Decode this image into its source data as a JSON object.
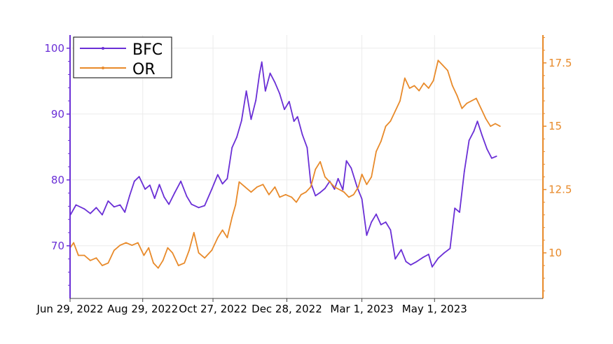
{
  "chart_data": {
    "type": "line",
    "title": "",
    "xlabel": "",
    "ylabel": "",
    "x_range": [
      "2022-06-29",
      "2023-07-31"
    ],
    "x_ticks": [
      {
        "date": "2022-06-29",
        "label": "Jun 29, 2022"
      },
      {
        "date": "2022-08-29",
        "label": "Aug 29, 2022"
      },
      {
        "date": "2022-10-27",
        "label": "Oct 27, 2022"
      },
      {
        "date": "2022-12-28",
        "label": "Dec 28, 2022"
      },
      {
        "date": "2023-03-01",
        "label": "Mar 1, 2023"
      },
      {
        "date": "2023-05-01",
        "label": "May 1, 2023"
      }
    ],
    "y_left": {
      "range": [
        62,
        102
      ],
      "ticks": [
        70,
        80,
        90,
        100
      ],
      "tick_labels": [
        "70",
        "80",
        "90",
        "100"
      ],
      "color": "#6a2fd6"
    },
    "y_right": {
      "range": [
        8.2,
        18.6
      ],
      "ticks": [
        10,
        12.5,
        15,
        17.5
      ],
      "tick_labels": [
        "10",
        "12.5",
        "15",
        "17.5"
      ],
      "color": "#e88a2a"
    },
    "grid": true,
    "legend_position": "top-left",
    "series": [
      {
        "name": "BFC",
        "axis": "left",
        "color": "#6a2fd6",
        "points": [
          [
            "2022-06-29",
            74.6
          ],
          [
            "2022-07-04",
            76.2
          ],
          [
            "2022-07-11",
            75.6
          ],
          [
            "2022-07-16",
            74.9
          ],
          [
            "2022-07-21",
            75.8
          ],
          [
            "2022-07-26",
            74.7
          ],
          [
            "2022-07-31",
            76.8
          ],
          [
            "2022-08-05",
            75.9
          ],
          [
            "2022-08-10",
            76.2
          ],
          [
            "2022-08-14",
            75.1
          ],
          [
            "2022-08-18",
            77.6
          ],
          [
            "2022-08-22",
            79.8
          ],
          [
            "2022-08-26",
            80.5
          ],
          [
            "2022-08-31",
            78.6
          ],
          [
            "2022-09-04",
            79.2
          ],
          [
            "2022-09-08",
            77.2
          ],
          [
            "2022-09-12",
            79.3
          ],
          [
            "2022-09-16",
            77.4
          ],
          [
            "2022-09-20",
            76.3
          ],
          [
            "2022-09-25",
            78.1
          ],
          [
            "2022-09-30",
            79.8
          ],
          [
            "2022-10-05",
            77.5
          ],
          [
            "2022-10-09",
            76.3
          ],
          [
            "2022-10-15",
            75.8
          ],
          [
            "2022-10-20",
            76.1
          ],
          [
            "2022-10-26",
            78.6
          ],
          [
            "2022-10-31",
            80.8
          ],
          [
            "2022-11-04",
            79.4
          ],
          [
            "2022-11-08",
            80.2
          ],
          [
            "2022-11-12",
            84.9
          ],
          [
            "2022-11-16",
            86.5
          ],
          [
            "2022-11-20",
            89.0
          ],
          [
            "2022-11-24",
            93.5
          ],
          [
            "2022-11-28",
            89.2
          ],
          [
            "2022-12-02",
            92.1
          ],
          [
            "2022-12-05",
            96.0
          ],
          [
            "2022-12-07",
            97.9
          ],
          [
            "2022-12-10",
            93.5
          ],
          [
            "2022-12-14",
            96.2
          ],
          [
            "2022-12-18",
            94.8
          ],
          [
            "2022-12-22",
            93.1
          ],
          [
            "2022-12-26",
            90.7
          ],
          [
            "2022-12-30",
            91.9
          ],
          [
            "2023-01-03",
            88.9
          ],
          [
            "2023-01-06",
            89.6
          ],
          [
            "2023-01-10",
            86.9
          ],
          [
            "2023-01-14",
            84.9
          ],
          [
            "2023-01-17",
            79.6
          ],
          [
            "2023-01-21",
            77.6
          ],
          [
            "2023-01-25",
            78.1
          ],
          [
            "2023-01-29",
            78.7
          ],
          [
            "2023-02-02",
            79.8
          ],
          [
            "2023-02-06",
            78.6
          ],
          [
            "2023-02-09",
            80.2
          ],
          [
            "2023-02-13",
            78.5
          ],
          [
            "2023-02-16",
            82.9
          ],
          [
            "2023-02-20",
            81.8
          ],
          [
            "2023-02-25",
            78.9
          ],
          [
            "2023-03-01",
            77.1
          ],
          [
            "2023-03-05",
            71.6
          ],
          [
            "2023-03-09",
            73.6
          ],
          [
            "2023-03-13",
            74.8
          ],
          [
            "2023-03-17",
            73.2
          ],
          [
            "2023-03-21",
            73.6
          ],
          [
            "2023-03-25",
            72.4
          ],
          [
            "2023-03-29",
            68.0
          ],
          [
            "2023-04-03",
            69.4
          ],
          [
            "2023-04-07",
            67.6
          ],
          [
            "2023-04-11",
            67.1
          ],
          [
            "2023-04-16",
            67.6
          ],
          [
            "2023-04-21",
            68.2
          ],
          [
            "2023-04-26",
            68.7
          ],
          [
            "2023-04-29",
            66.8
          ],
          [
            "2023-05-04",
            68.1
          ],
          [
            "2023-05-09",
            68.9
          ],
          [
            "2023-05-14",
            69.6
          ],
          [
            "2023-05-18",
            75.7
          ],
          [
            "2023-05-22",
            75.1
          ],
          [
            "2023-05-26",
            81.3
          ],
          [
            "2023-05-30",
            86.0
          ],
          [
            "2023-06-03",
            87.4
          ],
          [
            "2023-06-06",
            88.9
          ],
          [
            "2023-06-10",
            86.7
          ],
          [
            "2023-06-14",
            84.7
          ],
          [
            "2023-06-18",
            83.3
          ],
          [
            "2023-06-22",
            83.6
          ]
        ]
      },
      {
        "name": "OR",
        "axis": "right",
        "color": "#e88a2a",
        "points": [
          [
            "2022-06-29",
            10.2
          ],
          [
            "2022-07-02",
            10.4
          ],
          [
            "2022-07-06",
            9.9
          ],
          [
            "2022-07-11",
            9.9
          ],
          [
            "2022-07-16",
            9.7
          ],
          [
            "2022-07-21",
            9.8
          ],
          [
            "2022-07-26",
            9.5
          ],
          [
            "2022-07-31",
            9.6
          ],
          [
            "2022-08-05",
            10.1
          ],
          [
            "2022-08-10",
            10.3
          ],
          [
            "2022-08-15",
            10.4
          ],
          [
            "2022-08-20",
            10.3
          ],
          [
            "2022-08-25",
            10.4
          ],
          [
            "2022-08-30",
            9.9
          ],
          [
            "2022-09-03",
            10.2
          ],
          [
            "2022-09-07",
            9.6
          ],
          [
            "2022-09-11",
            9.4
          ],
          [
            "2022-09-15",
            9.7
          ],
          [
            "2022-09-19",
            10.2
          ],
          [
            "2022-09-23",
            10.0
          ],
          [
            "2022-09-28",
            9.5
          ],
          [
            "2022-10-03",
            9.6
          ],
          [
            "2022-10-07",
            10.1
          ],
          [
            "2022-10-11",
            10.8
          ],
          [
            "2022-10-15",
            10.0
          ],
          [
            "2022-10-20",
            9.8
          ],
          [
            "2022-10-26",
            10.1
          ],
          [
            "2022-10-31",
            10.6
          ],
          [
            "2022-11-04",
            10.9
          ],
          [
            "2022-11-08",
            10.6
          ],
          [
            "2022-11-12",
            11.4
          ],
          [
            "2022-11-15",
            11.9
          ],
          [
            "2022-11-18",
            12.8
          ],
          [
            "2022-11-23",
            12.6
          ],
          [
            "2022-11-28",
            12.4
          ],
          [
            "2022-12-03",
            12.6
          ],
          [
            "2022-12-08",
            12.7
          ],
          [
            "2022-12-13",
            12.3
          ],
          [
            "2022-12-18",
            12.6
          ],
          [
            "2022-12-22",
            12.2
          ],
          [
            "2022-12-27",
            12.3
          ],
          [
            "2023-01-01",
            12.2
          ],
          [
            "2023-01-05",
            12.0
          ],
          [
            "2023-01-09",
            12.3
          ],
          [
            "2023-01-13",
            12.4
          ],
          [
            "2023-01-17",
            12.6
          ],
          [
            "2023-01-21",
            13.3
          ],
          [
            "2023-01-25",
            13.6
          ],
          [
            "2023-01-29",
            13.0
          ],
          [
            "2023-02-02",
            12.8
          ],
          [
            "2023-02-06",
            12.6
          ],
          [
            "2023-02-10",
            12.5
          ],
          [
            "2023-02-14",
            12.4
          ],
          [
            "2023-02-18",
            12.2
          ],
          [
            "2023-02-22",
            12.3
          ],
          [
            "2023-02-26",
            12.6
          ],
          [
            "2023-03-01",
            13.1
          ],
          [
            "2023-03-05",
            12.7
          ],
          [
            "2023-03-09",
            13.0
          ],
          [
            "2023-03-13",
            14.0
          ],
          [
            "2023-03-17",
            14.4
          ],
          [
            "2023-03-21",
            15.0
          ],
          [
            "2023-03-25",
            15.2
          ],
          [
            "2023-03-29",
            15.6
          ],
          [
            "2023-04-02",
            16.0
          ],
          [
            "2023-04-06",
            16.9
          ],
          [
            "2023-04-10",
            16.5
          ],
          [
            "2023-04-14",
            16.6
          ],
          [
            "2023-04-18",
            16.4
          ],
          [
            "2023-04-22",
            16.7
          ],
          [
            "2023-04-26",
            16.5
          ],
          [
            "2023-04-30",
            16.8
          ],
          [
            "2023-05-04",
            17.6
          ],
          [
            "2023-05-08",
            17.4
          ],
          [
            "2023-05-12",
            17.2
          ],
          [
            "2023-05-16",
            16.6
          ],
          [
            "2023-05-20",
            16.2
          ],
          [
            "2023-05-24",
            15.7
          ],
          [
            "2023-05-28",
            15.9
          ],
          [
            "2023-06-01",
            16.0
          ],
          [
            "2023-06-05",
            16.1
          ],
          [
            "2023-06-09",
            15.7
          ],
          [
            "2023-06-13",
            15.3
          ],
          [
            "2023-06-17",
            15.0
          ],
          [
            "2023-06-21",
            15.1
          ],
          [
            "2023-06-25",
            15.0
          ]
        ]
      }
    ]
  }
}
